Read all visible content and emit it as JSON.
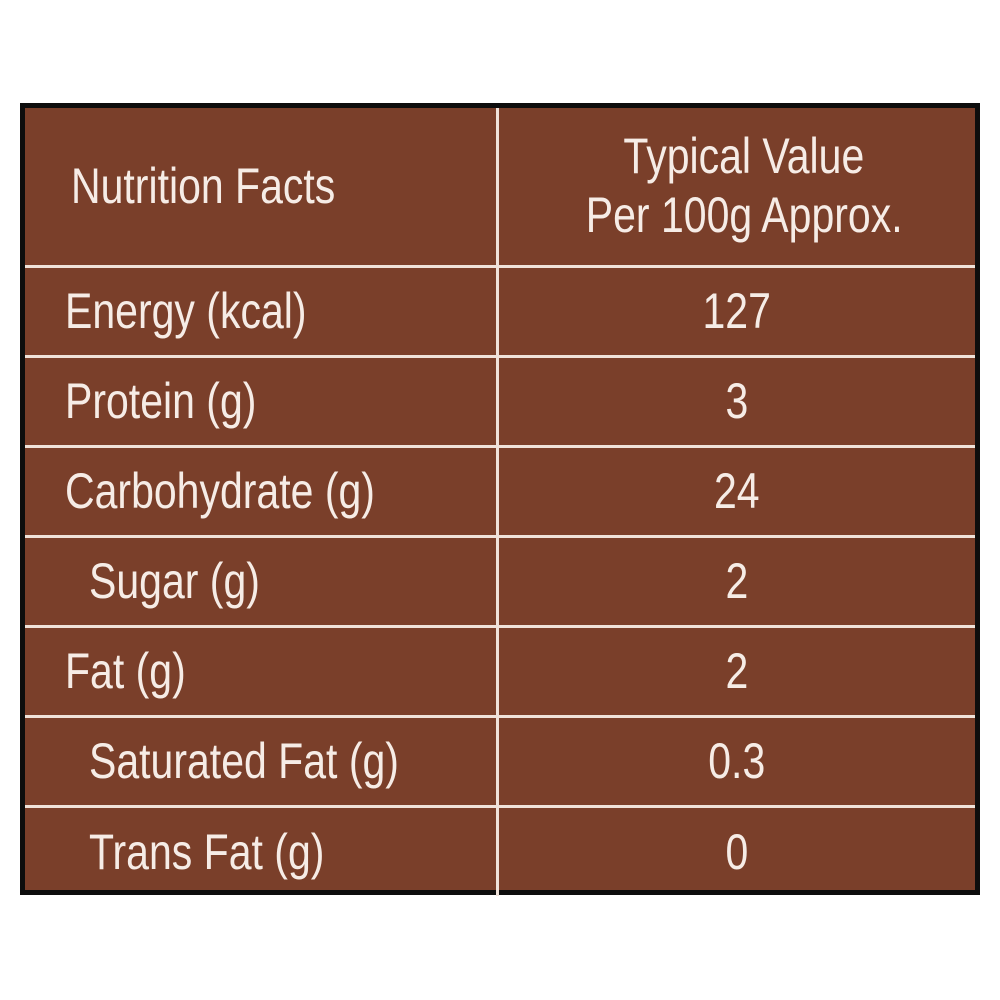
{
  "table": {
    "header": {
      "name_label": "Nutrition Facts",
      "value_label_line1": "Typical Value",
      "value_label_line2": "Per 100g Approx."
    },
    "rows": [
      {
        "label": "Energy (kcal)",
        "value": "127",
        "indent": false
      },
      {
        "label": "Protein (g)",
        "value": "3",
        "indent": false
      },
      {
        "label": "Carbohydrate (g)",
        "value": "24",
        "indent": false
      },
      {
        "label": "Sugar (g)",
        "value": "2",
        "indent": true
      },
      {
        "label": "Fat (g)",
        "value": "2",
        "indent": false
      },
      {
        "label": "Saturated Fat (g)",
        "value": "0.3",
        "indent": true
      },
      {
        "label": "Trans Fat (g)",
        "value": "0",
        "indent": true
      }
    ]
  },
  "colors": {
    "background": "#7a3f2a",
    "text": "#f6ece6",
    "grid_lines": "#efe2da",
    "outer_border": "#0d0d0d"
  }
}
